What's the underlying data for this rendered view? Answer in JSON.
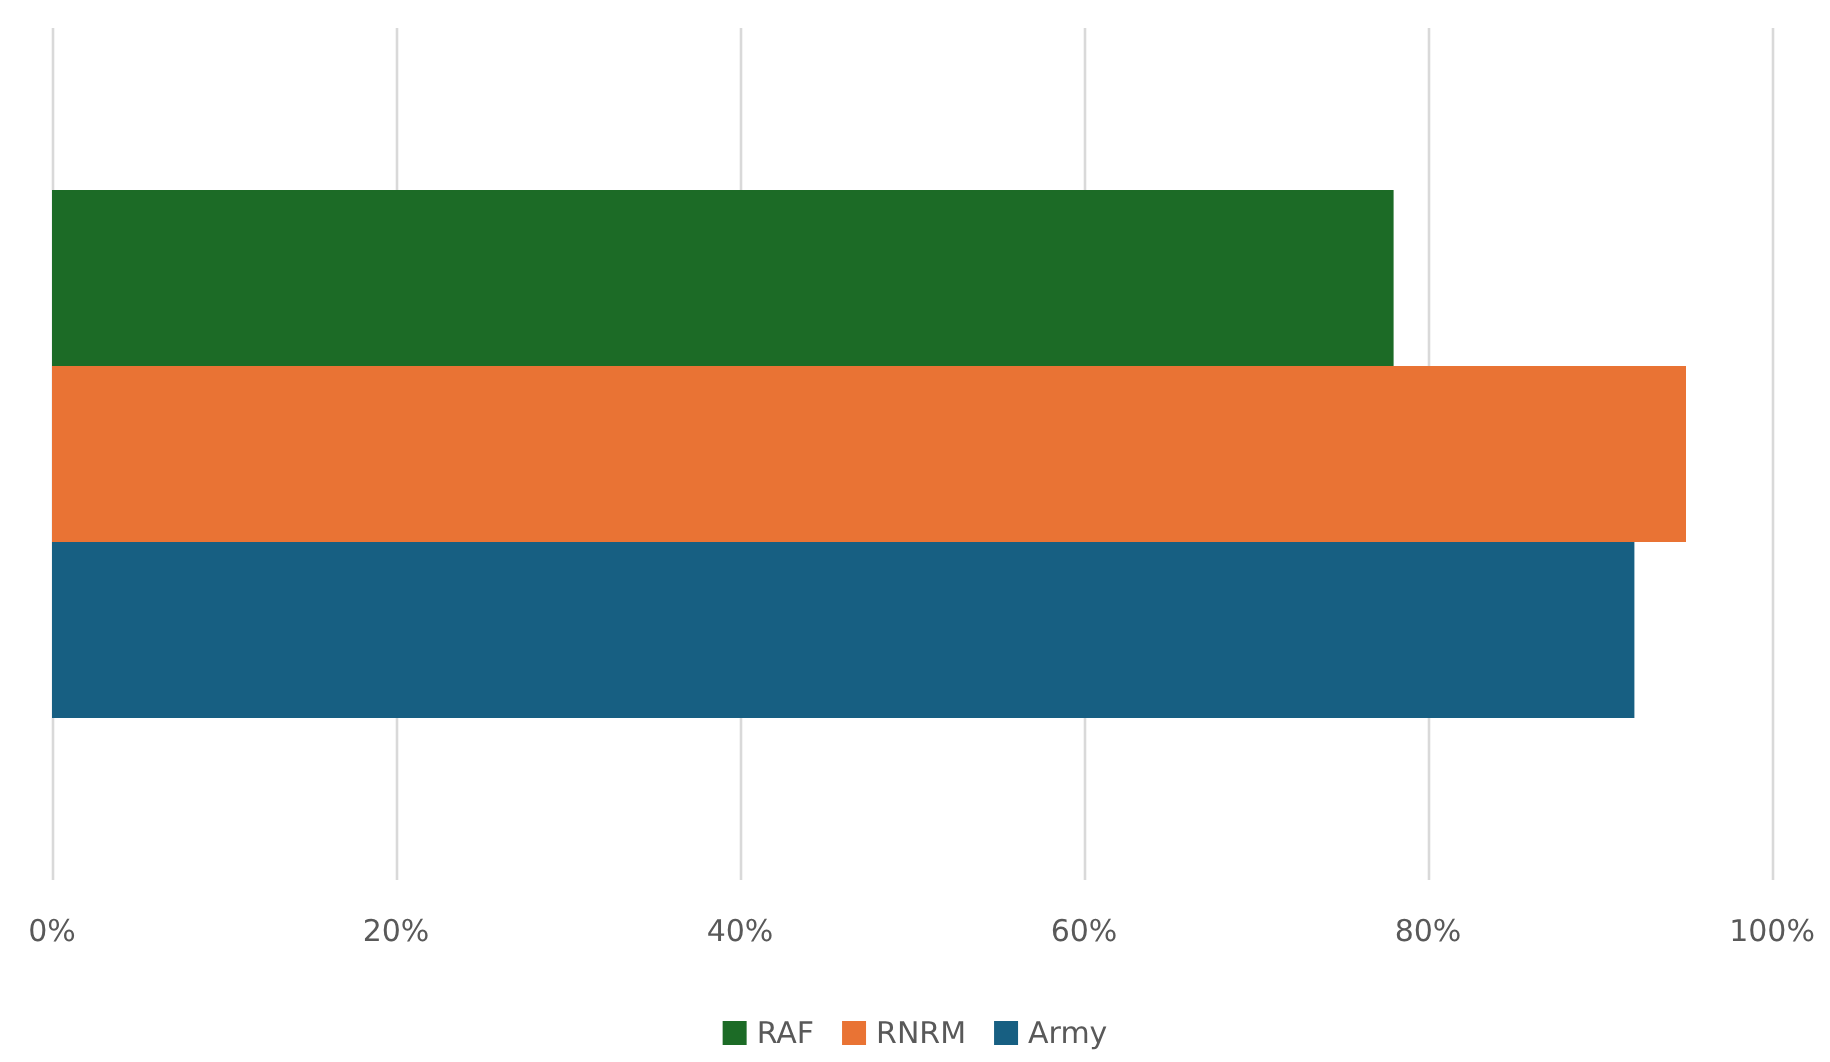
{
  "chart_data": {
    "type": "bar",
    "orientation": "horizontal",
    "categories": [
      null
    ],
    "series": [
      {
        "name": "RAF",
        "color": "#1c6b26",
        "values": [
          78
        ]
      },
      {
        "name": "RNRM",
        "color": "#e97334",
        "values": [
          95
        ]
      },
      {
        "name": "Army",
        "color": "#175f82",
        "values": [
          92
        ]
      }
    ],
    "xlim": [
      0,
      100
    ],
    "xticks": [
      {
        "value": 0,
        "label": "0%"
      },
      {
        "value": 20,
        "label": "20%"
      },
      {
        "value": 40,
        "label": "40%"
      },
      {
        "value": 60,
        "label": "60%"
      },
      {
        "value": 80,
        "label": "80%"
      },
      {
        "value": 100,
        "label": "100%"
      }
    ],
    "grid": "x",
    "legend": "bottom"
  }
}
